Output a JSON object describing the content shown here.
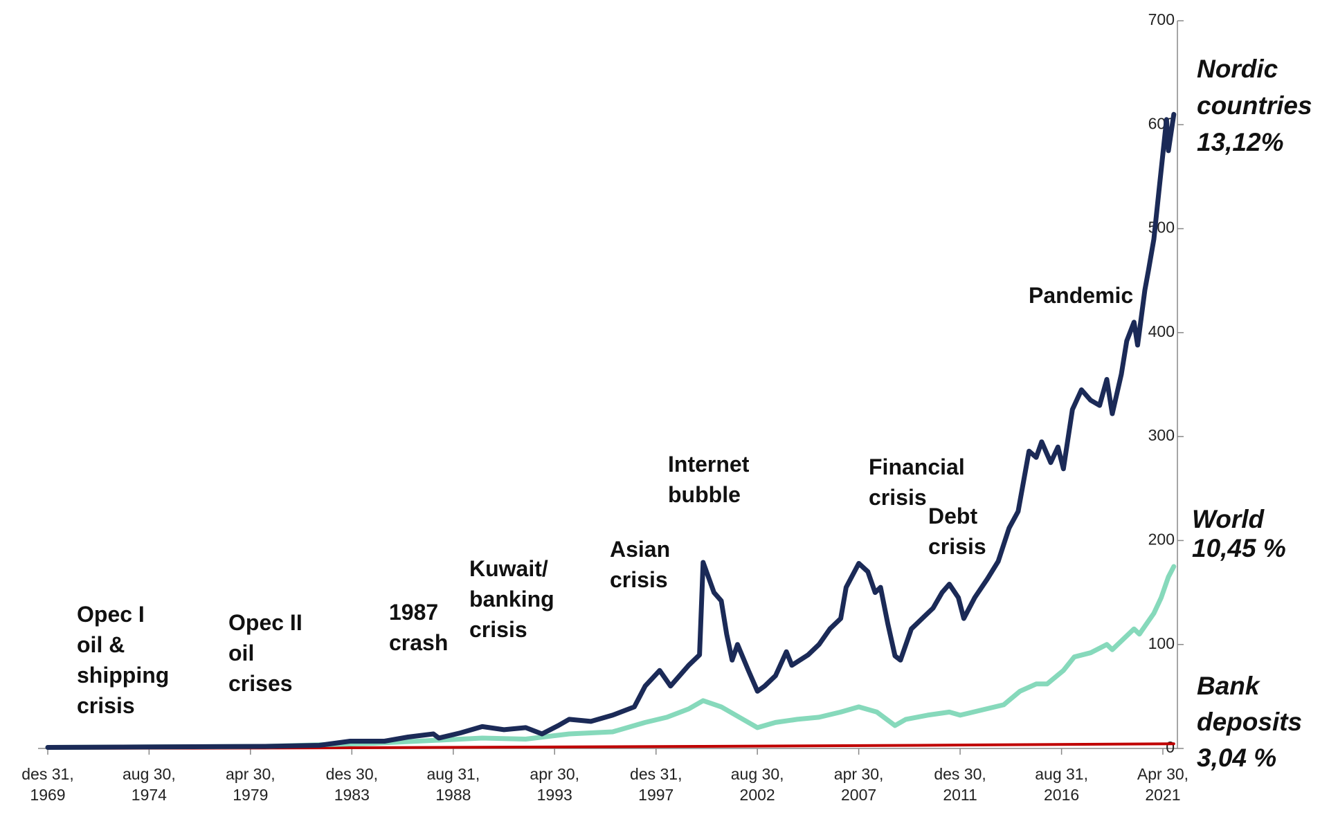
{
  "chart_data": {
    "type": "line",
    "xlim": [
      "1969-12-31",
      "2021-12-31"
    ],
    "xticks": [
      {
        "value": "1969-12-31",
        "label": "des 31, 1969"
      },
      {
        "value": "1974-08-30",
        "label": "aug 30, 1974"
      },
      {
        "value": "1979-04-30",
        "label": "apr 30, 1979"
      },
      {
        "value": "1983-12-30",
        "label": "des 30, 1983"
      },
      {
        "value": "1988-08-31",
        "label": "aug 31, 1988"
      },
      {
        "value": "1993-04-30",
        "label": "apr 30, 1993"
      },
      {
        "value": "1997-12-31",
        "label": "des 31, 1997"
      },
      {
        "value": "2002-08-30",
        "label": "aug 30, 2002"
      },
      {
        "value": "2007-04-30",
        "label": "apr 30, 2007"
      },
      {
        "value": "2011-12-30",
        "label": "des 30, 2011"
      },
      {
        "value": "2016-08-31",
        "label": "aug 31, 2016"
      },
      {
        "value": "2021-04-30",
        "label": "Apr 30, 2021"
      }
    ],
    "ylim": [
      0,
      700
    ],
    "yticks": [
      0,
      100,
      200,
      300,
      400,
      500,
      600,
      700
    ],
    "grid": false,
    "series": [
      {
        "name": "Nordic countries",
        "label": "13,12%",
        "color": "#1b2a57",
        "x": [
          "1970-01",
          "1975-01",
          "1980-01",
          "1982-07",
          "1983-12",
          "1985-07",
          "1986-08",
          "1987-10",
          "1988-01",
          "1989-01",
          "1990-01",
          "1991-01",
          "1992-01",
          "1992-10",
          "1993-07",
          "1994-01",
          "1995-01",
          "1996-01",
          "1997-01",
          "1997-07",
          "1998-03",
          "1998-09",
          "1999-07",
          "2000-01",
          "2000-03",
          "2000-09",
          "2001-01",
          "2001-04",
          "2001-07",
          "2001-10",
          "2002-04",
          "2002-09",
          "2003-01",
          "2003-07",
          "2004-01",
          "2004-04",
          "2005-01",
          "2005-07",
          "2006-01",
          "2006-07",
          "2006-10",
          "2007-05",
          "2007-10",
          "2008-02",
          "2008-05",
          "2008-09",
          "2009-01",
          "2009-04",
          "2009-10",
          "2010-04",
          "2010-10",
          "2011-03",
          "2011-07",
          "2011-12",
          "2012-03",
          "2012-09",
          "2013-04",
          "2013-10",
          "2014-04",
          "2014-09",
          "2015-03",
          "2015-07",
          "2015-10",
          "2016-03",
          "2016-07",
          "2016-10",
          "2017-03",
          "2017-08",
          "2018-01",
          "2018-06",
          "2018-10",
          "2019-01",
          "2019-06",
          "2019-09",
          "2020-01",
          "2020-03",
          "2020-07",
          "2020-09",
          "2020-12",
          "2021-03",
          "2021-07",
          "2021-08",
          "2021-11"
        ],
        "values": [
          1,
          1.5,
          2,
          3,
          7,
          7,
          11,
          14,
          10,
          15,
          21,
          18,
          20,
          14,
          22,
          28,
          26,
          32,
          40,
          60,
          75,
          60,
          80,
          90,
          179,
          150,
          142,
          110,
          85,
          100,
          75,
          55,
          60,
          70,
          93,
          80,
          90,
          100,
          115,
          125,
          155,
          178,
          170,
          150,
          155,
          120,
          89,
          85,
          115,
          125,
          135,
          150,
          158,
          145,
          125,
          145,
          163,
          180,
          212,
          228,
          286,
          280,
          295,
          275,
          290,
          269,
          326,
          345,
          335,
          330,
          355,
          322,
          360,
          392,
          410,
          388,
          441,
          460,
          490,
          540,
          605,
          575,
          610
        ]
      },
      {
        "name": "World",
        "label": "10,45 %",
        "color": "#86d9bb",
        "x": [
          "1970-01",
          "1980-01",
          "1985-01",
          "1988-01",
          "1990-01",
          "1992-01",
          "1994-01",
          "1996-01",
          "1997-07",
          "1998-07",
          "1999-07",
          "2000-03",
          "2001-01",
          "2002-01",
          "2002-09",
          "2003-07",
          "2004-07",
          "2005-07",
          "2006-07",
          "2007-05",
          "2008-03",
          "2009-01",
          "2009-07",
          "2010-07",
          "2011-07",
          "2012-01",
          "2013-01",
          "2014-01",
          "2014-10",
          "2015-07",
          "2016-01",
          "2016-10",
          "2017-04",
          "2018-01",
          "2018-10",
          "2019-01",
          "2020-01",
          "2020-04",
          "2020-12",
          "2021-04",
          "2021-08",
          "2021-11"
        ],
        "values": [
          1,
          2,
          5,
          8,
          10,
          9,
          14,
          16,
          25,
          30,
          38,
          46,
          40,
          28,
          20,
          25,
          28,
          30,
          35,
          40,
          35,
          22,
          28,
          32,
          35,
          32,
          37,
          42,
          55,
          62,
          62,
          75,
          88,
          92,
          100,
          95,
          115,
          110,
          130,
          145,
          165,
          175
        ]
      },
      {
        "name": "Bank deposits",
        "label": "3,04 %",
        "color": "#c00000",
        "x": [
          "1970-01",
          "1980-01",
          "1990-01",
          "2000-01",
          "2010-01",
          "2021-11"
        ],
        "values": [
          0.1,
          0.4,
          1.1,
          2,
          3,
          4.5
        ]
      }
    ],
    "annotations": [
      [
        "Opec I",
        "oil &",
        "shipping",
        "crisis"
      ],
      [
        "Opec II",
        "oil",
        "crises"
      ],
      [
        "1987",
        "crash"
      ],
      [
        "Kuwait/",
        "banking",
        "crisis"
      ],
      [
        "Asian",
        "crisis"
      ],
      [
        "Internet",
        "bubble"
      ],
      [
        "Financial",
        "crisis"
      ],
      [
        "Debt",
        "crisis"
      ],
      [
        "Pandemic"
      ]
    ]
  }
}
